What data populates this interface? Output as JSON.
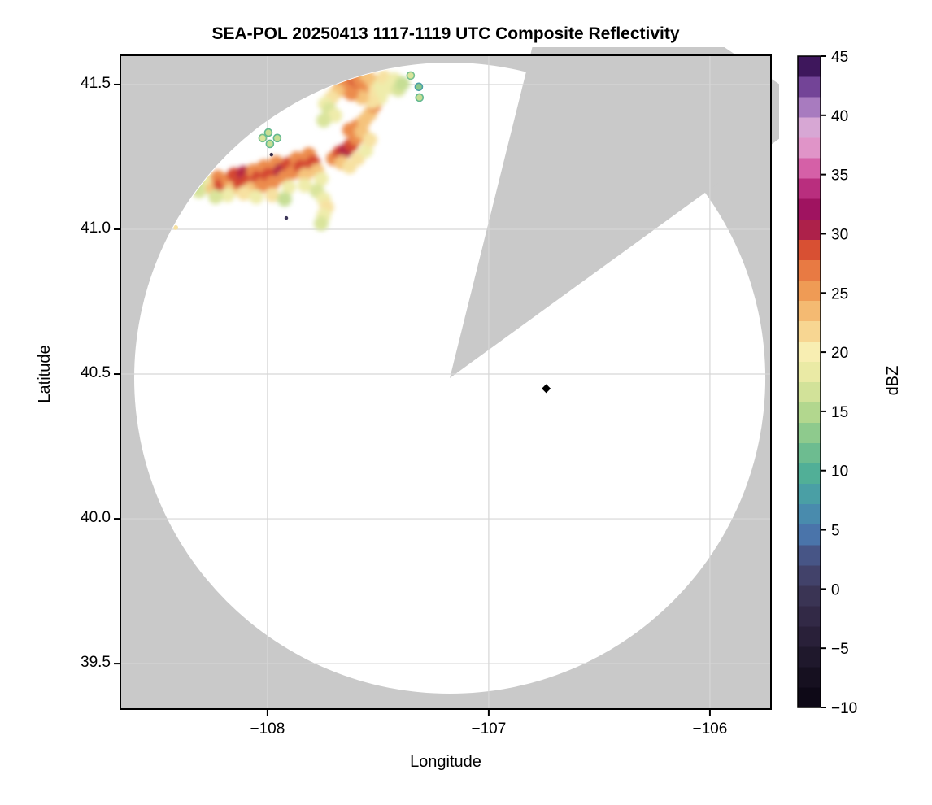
{
  "title": "SEA-POL 20250413 1117-1119 UTC Composite Reflectivity",
  "chart_data": {
    "type": "heatmap",
    "subtype": "radar-ppi-composite-reflectivity",
    "title": "SEA-POL 20250413 1117-1119 UTC Composite Reflectivity",
    "xlabel": "Longitude",
    "ylabel": "Latitude",
    "grid": true,
    "xlim": [
      -108.665,
      -105.724
    ],
    "ylim": [
      39.343,
      41.601
    ],
    "xticks": [
      {
        "v": -108,
        "label": "−108"
      },
      {
        "v": -107,
        "label": "−107"
      },
      {
        "v": -106,
        "label": "−106"
      }
    ],
    "yticks": [
      {
        "v": 41.5,
        "label": "41.5"
      },
      {
        "v": 41.0,
        "label": "41.0"
      },
      {
        "v": 40.5,
        "label": "40.5"
      },
      {
        "v": 40.0,
        "label": "40.0"
      },
      {
        "v": 39.5,
        "label": "39.5"
      }
    ],
    "colors": {
      "no_data": "#c9c9c9",
      "scanned_clear": "#ffffff",
      "grid": "#d6d6d6",
      "axis": "#000000",
      "marker": "#000000"
    },
    "radar": {
      "center_lon": -107.176,
      "center_lat": 40.486,
      "range_lon_deg": 1.4265,
      "missing_sector_azimuth_deg": [
        14,
        54
      ]
    },
    "marker": {
      "lon": -106.74,
      "lat": 40.45,
      "shape": "diamond",
      "color": "#000000"
    },
    "colorbar": {
      "label": "dBZ",
      "min": -10,
      "max": 45,
      "bins": 32,
      "ticks": [
        {
          "v": 45,
          "label": "45"
        },
        {
          "v": 40,
          "label": "40"
        },
        {
          "v": 35,
          "label": "35"
        },
        {
          "v": 30,
          "label": "30"
        },
        {
          "v": 25,
          "label": "25"
        },
        {
          "v": 20,
          "label": "20"
        },
        {
          "v": 15,
          "label": "15"
        },
        {
          "v": 10,
          "label": "10"
        },
        {
          "v": 5,
          "label": "5"
        },
        {
          "v": 0,
          "label": "0"
        },
        {
          "v": -5,
          "label": "−5"
        },
        {
          "v": -10,
          "label": "−10"
        }
      ],
      "stops": [
        [
          -10,
          "#0a0613"
        ],
        [
          -7.5,
          "#16101f"
        ],
        [
          -5,
          "#231b31"
        ],
        [
          -2.5,
          "#312844"
        ],
        [
          0,
          "#3d3759"
        ],
        [
          2.5,
          "#474e7e"
        ],
        [
          5,
          "#4a7bb2"
        ],
        [
          7.5,
          "#489aa9"
        ],
        [
          10,
          "#52b195"
        ],
        [
          12.5,
          "#7fc48c"
        ],
        [
          15,
          "#b4d88e"
        ],
        [
          17.5,
          "#e2e79e"
        ],
        [
          20,
          "#f8efb3"
        ],
        [
          22.5,
          "#f6cc85"
        ],
        [
          25,
          "#f0a057"
        ],
        [
          27.5,
          "#e66f3d"
        ],
        [
          29,
          "#d44730"
        ],
        [
          30,
          "#b42745"
        ],
        [
          31.5,
          "#99115a"
        ],
        [
          33,
          "#a81768"
        ],
        [
          35,
          "#d14f9c"
        ],
        [
          37,
          "#df8ec4"
        ],
        [
          38.5,
          "#e5b2d9"
        ],
        [
          40,
          "#b98fcb"
        ],
        [
          41.5,
          "#9465b1"
        ],
        [
          43,
          "#5f2f87"
        ],
        [
          44.5,
          "#33104e"
        ],
        [
          45,
          "#240a3d"
        ]
      ]
    },
    "echo_cells_format": [
      "lon",
      "lat",
      "dbz",
      "kind(optional: blob default, ring, speck, dot)"
    ],
    "echo_cells": [
      [
        -108.29,
        41.152,
        19
      ],
      [
        -108.261,
        41.169,
        19
      ],
      [
        -108.246,
        41.14,
        23
      ],
      [
        -108.224,
        41.18,
        26
      ],
      [
        -108.21,
        41.152,
        29
      ],
      [
        -108.18,
        41.169,
        26
      ],
      [
        -108.162,
        41.14,
        23
      ],
      [
        -108.151,
        41.188,
        29
      ],
      [
        -108.125,
        41.16,
        29
      ],
      [
        -108.107,
        41.194,
        30
      ],
      [
        -108.088,
        41.169,
        29
      ],
      [
        -108.077,
        41.14,
        23
      ],
      [
        -108.063,
        41.202,
        26
      ],
      [
        -108.04,
        41.18,
        29
      ],
      [
        -108.026,
        41.152,
        26
      ],
      [
        -108.015,
        41.216,
        26
      ],
      [
        -107.996,
        41.188,
        29
      ],
      [
        -107.978,
        41.16,
        26
      ],
      [
        -107.978,
        41.118,
        21
      ],
      [
        -107.96,
        41.23,
        26
      ],
      [
        -107.941,
        41.202,
        30
      ],
      [
        -108.107,
        41.124,
        21
      ],
      [
        -108.051,
        41.112,
        19
      ],
      [
        -108.18,
        41.118,
        19
      ],
      [
        -108.235,
        41.112,
        17
      ],
      [
        -108.309,
        41.132,
        17
      ],
      [
        -108.316,
        41.169,
        17
      ],
      [
        -108.335,
        41.152,
        16
      ],
      [
        -107.923,
        41.18,
        26
      ],
      [
        -107.904,
        41.225,
        29
      ],
      [
        -107.886,
        41.197,
        26
      ],
      [
        -107.868,
        41.244,
        26
      ],
      [
        -107.849,
        41.216,
        29
      ],
      [
        -107.831,
        41.188,
        23
      ],
      [
        -107.813,
        41.258,
        26
      ],
      [
        -107.794,
        41.23,
        29
      ],
      [
        -107.776,
        41.202,
        23
      ],
      [
        -107.757,
        41.174,
        19
      ],
      [
        -107.904,
        41.146,
        19
      ],
      [
        -107.831,
        41.152,
        19
      ],
      [
        -107.776,
        41.132,
        17
      ],
      [
        -107.746,
        41.104,
        19
      ],
      [
        -107.732,
        41.076,
        21
      ],
      [
        -107.746,
        41.048,
        19
      ],
      [
        -107.757,
        41.02,
        17
      ],
      [
        -107.923,
        41.104,
        16
      ],
      [
        -107.702,
        41.244,
        26
      ],
      [
        -107.673,
        41.264,
        29
      ],
      [
        -107.647,
        41.272,
        30
      ],
      [
        -107.621,
        41.292,
        29
      ],
      [
        -107.599,
        41.315,
        26
      ],
      [
        -107.629,
        41.343,
        26
      ],
      [
        -107.592,
        41.357,
        26
      ],
      [
        -107.574,
        41.337,
        23
      ],
      [
        -107.665,
        41.23,
        23
      ],
      [
        -107.629,
        41.216,
        21
      ],
      [
        -107.592,
        41.244,
        21
      ],
      [
        -107.555,
        41.272,
        19
      ],
      [
        -107.537,
        41.309,
        21
      ],
      [
        -107.562,
        41.376,
        23
      ],
      [
        -107.537,
        41.399,
        23
      ],
      [
        -107.518,
        41.427,
        26
      ],
      [
        -107.5,
        41.449,
        23
      ],
      [
        -107.665,
        41.511,
        26
      ],
      [
        -107.636,
        41.525,
        26
      ],
      [
        -107.61,
        41.497,
        29
      ],
      [
        -107.585,
        41.517,
        26
      ],
      [
        -107.562,
        41.489,
        26
      ],
      [
        -107.555,
        41.534,
        23
      ],
      [
        -107.526,
        41.511,
        23
      ],
      [
        -107.511,
        41.478,
        21
      ],
      [
        -107.489,
        41.497,
        19
      ],
      [
        -107.474,
        41.525,
        21
      ],
      [
        -107.452,
        41.489,
        19
      ],
      [
        -107.426,
        41.517,
        19
      ],
      [
        -107.408,
        41.483,
        17
      ],
      [
        -107.39,
        41.503,
        16
      ],
      [
        -107.489,
        41.455,
        19
      ],
      [
        -107.526,
        41.441,
        21
      ],
      [
        -107.574,
        41.455,
        23
      ],
      [
        -107.621,
        41.469,
        26
      ],
      [
        -107.647,
        41.483,
        26
      ],
      [
        -107.684,
        41.478,
        23
      ],
      [
        -107.71,
        41.455,
        21
      ],
      [
        -107.739,
        41.433,
        19
      ],
      [
        -107.721,
        41.413,
        17
      ],
      [
        -107.695,
        41.393,
        19
      ],
      [
        -107.746,
        41.376,
        17
      ],
      [
        -107.989,
        41.295,
        16,
        "ring"
      ],
      [
        -107.956,
        41.315,
        16,
        "ring"
      ],
      [
        -108.022,
        41.315,
        17,
        "ring"
      ],
      [
        -107.996,
        41.334,
        16,
        "ring"
      ],
      [
        -107.353,
        41.531,
        17,
        "ring"
      ],
      [
        -107.316,
        41.492,
        13,
        "ring"
      ],
      [
        -107.313,
        41.455,
        16,
        "ring"
      ],
      [
        -108.415,
        41.006,
        21,
        "speck"
      ],
      [
        -107.915,
        41.039,
        0,
        "dot"
      ],
      [
        -107.982,
        41.258,
        -2,
        "dot"
      ]
    ]
  }
}
